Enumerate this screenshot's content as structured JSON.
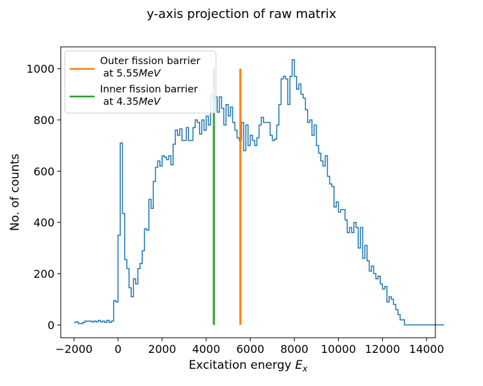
{
  "chart_data": {
    "type": "histogram-step",
    "title": "y-axis projection of raw matrix",
    "xlabel": "Excitation energy",
    "xlabel_symbol": "E",
    "xlabel_subscript": "x",
    "ylabel": "No. of counts",
    "xlim": [
      -2600,
      14400
    ],
    "ylim": [
      -50,
      1085
    ],
    "xticks": [
      -2000,
      0,
      2000,
      4000,
      6000,
      8000,
      10000,
      12000,
      14000
    ],
    "xtick_labels": [
      "−2000",
      "0",
      "2000",
      "4000",
      "6000",
      "8000",
      "10000",
      "12000",
      "14000"
    ],
    "yticks": [
      0,
      200,
      400,
      600,
      800,
      1000
    ],
    "ytick_labels": [
      "0",
      "200",
      "400",
      "600",
      "800",
      "1000"
    ],
    "histogram": {
      "name": "projection",
      "color": "#1f77b4",
      "bin_width": 100,
      "bin_start": -2000,
      "counts": [
        10,
        12,
        5,
        5,
        10,
        15,
        15,
        15,
        12,
        15,
        12,
        18,
        12,
        15,
        10,
        18,
        10,
        15,
        95,
        90,
        350,
        710,
        435,
        255,
        220,
        145,
        110,
        180,
        160,
        220,
        240,
        290,
        375,
        370,
        490,
        455,
        560,
        615,
        640,
        620,
        660,
        655,
        645,
        660,
        625,
        705,
        760,
        740,
        765,
        720,
        720,
        770,
        720,
        720,
        770,
        800,
        790,
        745,
        800,
        760,
        815,
        780,
        900,
        870,
        890,
        830,
        890,
        845,
        780,
        860,
        815,
        850,
        790,
        760,
        730,
        720,
        790,
        680,
        780,
        700,
        740,
        720,
        700,
        730,
        780,
        810,
        790,
        790,
        790,
        740,
        720,
        725,
        780,
        860,
        960,
        970,
        960,
        860,
        970,
        1035,
        970,
        920,
        940,
        900,
        885,
        840,
        790,
        800,
        740,
        780,
        700,
        670,
        640,
        620,
        660,
        580,
        550,
        540,
        460,
        480,
        440,
        450,
        450,
        410,
        360,
        380,
        360,
        400,
        380,
        300,
        380,
        260,
        310,
        250,
        210,
        230,
        200,
        180,
        190,
        160,
        140,
        150,
        90,
        110,
        100,
        80,
        60,
        40,
        20,
        20,
        0,
        0,
        0,
        0,
        0,
        0,
        0,
        0,
        0,
        0,
        0,
        0,
        0,
        0,
        0,
        0,
        0,
        0
      ]
    },
    "vlines": [
      {
        "name": "Outer fission barrier",
        "x": 5550,
        "y_range": [
          0,
          1000
        ],
        "color": "#ff7f0e"
      },
      {
        "name": "Inner fission barrier",
        "x": 4350,
        "y_range": [
          0,
          1000
        ],
        "color": "#2ca02c"
      }
    ],
    "legend": {
      "position": "top-left",
      "entries": [
        {
          "line1": "Outer fission barrier",
          "line2_prefix": " at 5.55",
          "line2_unit": "MeV",
          "color": "#ff7f0e"
        },
        {
          "line1": "Inner fission barrier",
          "line2_prefix": " at 4.35",
          "line2_unit": "MeV",
          "color": "#2ca02c"
        }
      ]
    }
  }
}
